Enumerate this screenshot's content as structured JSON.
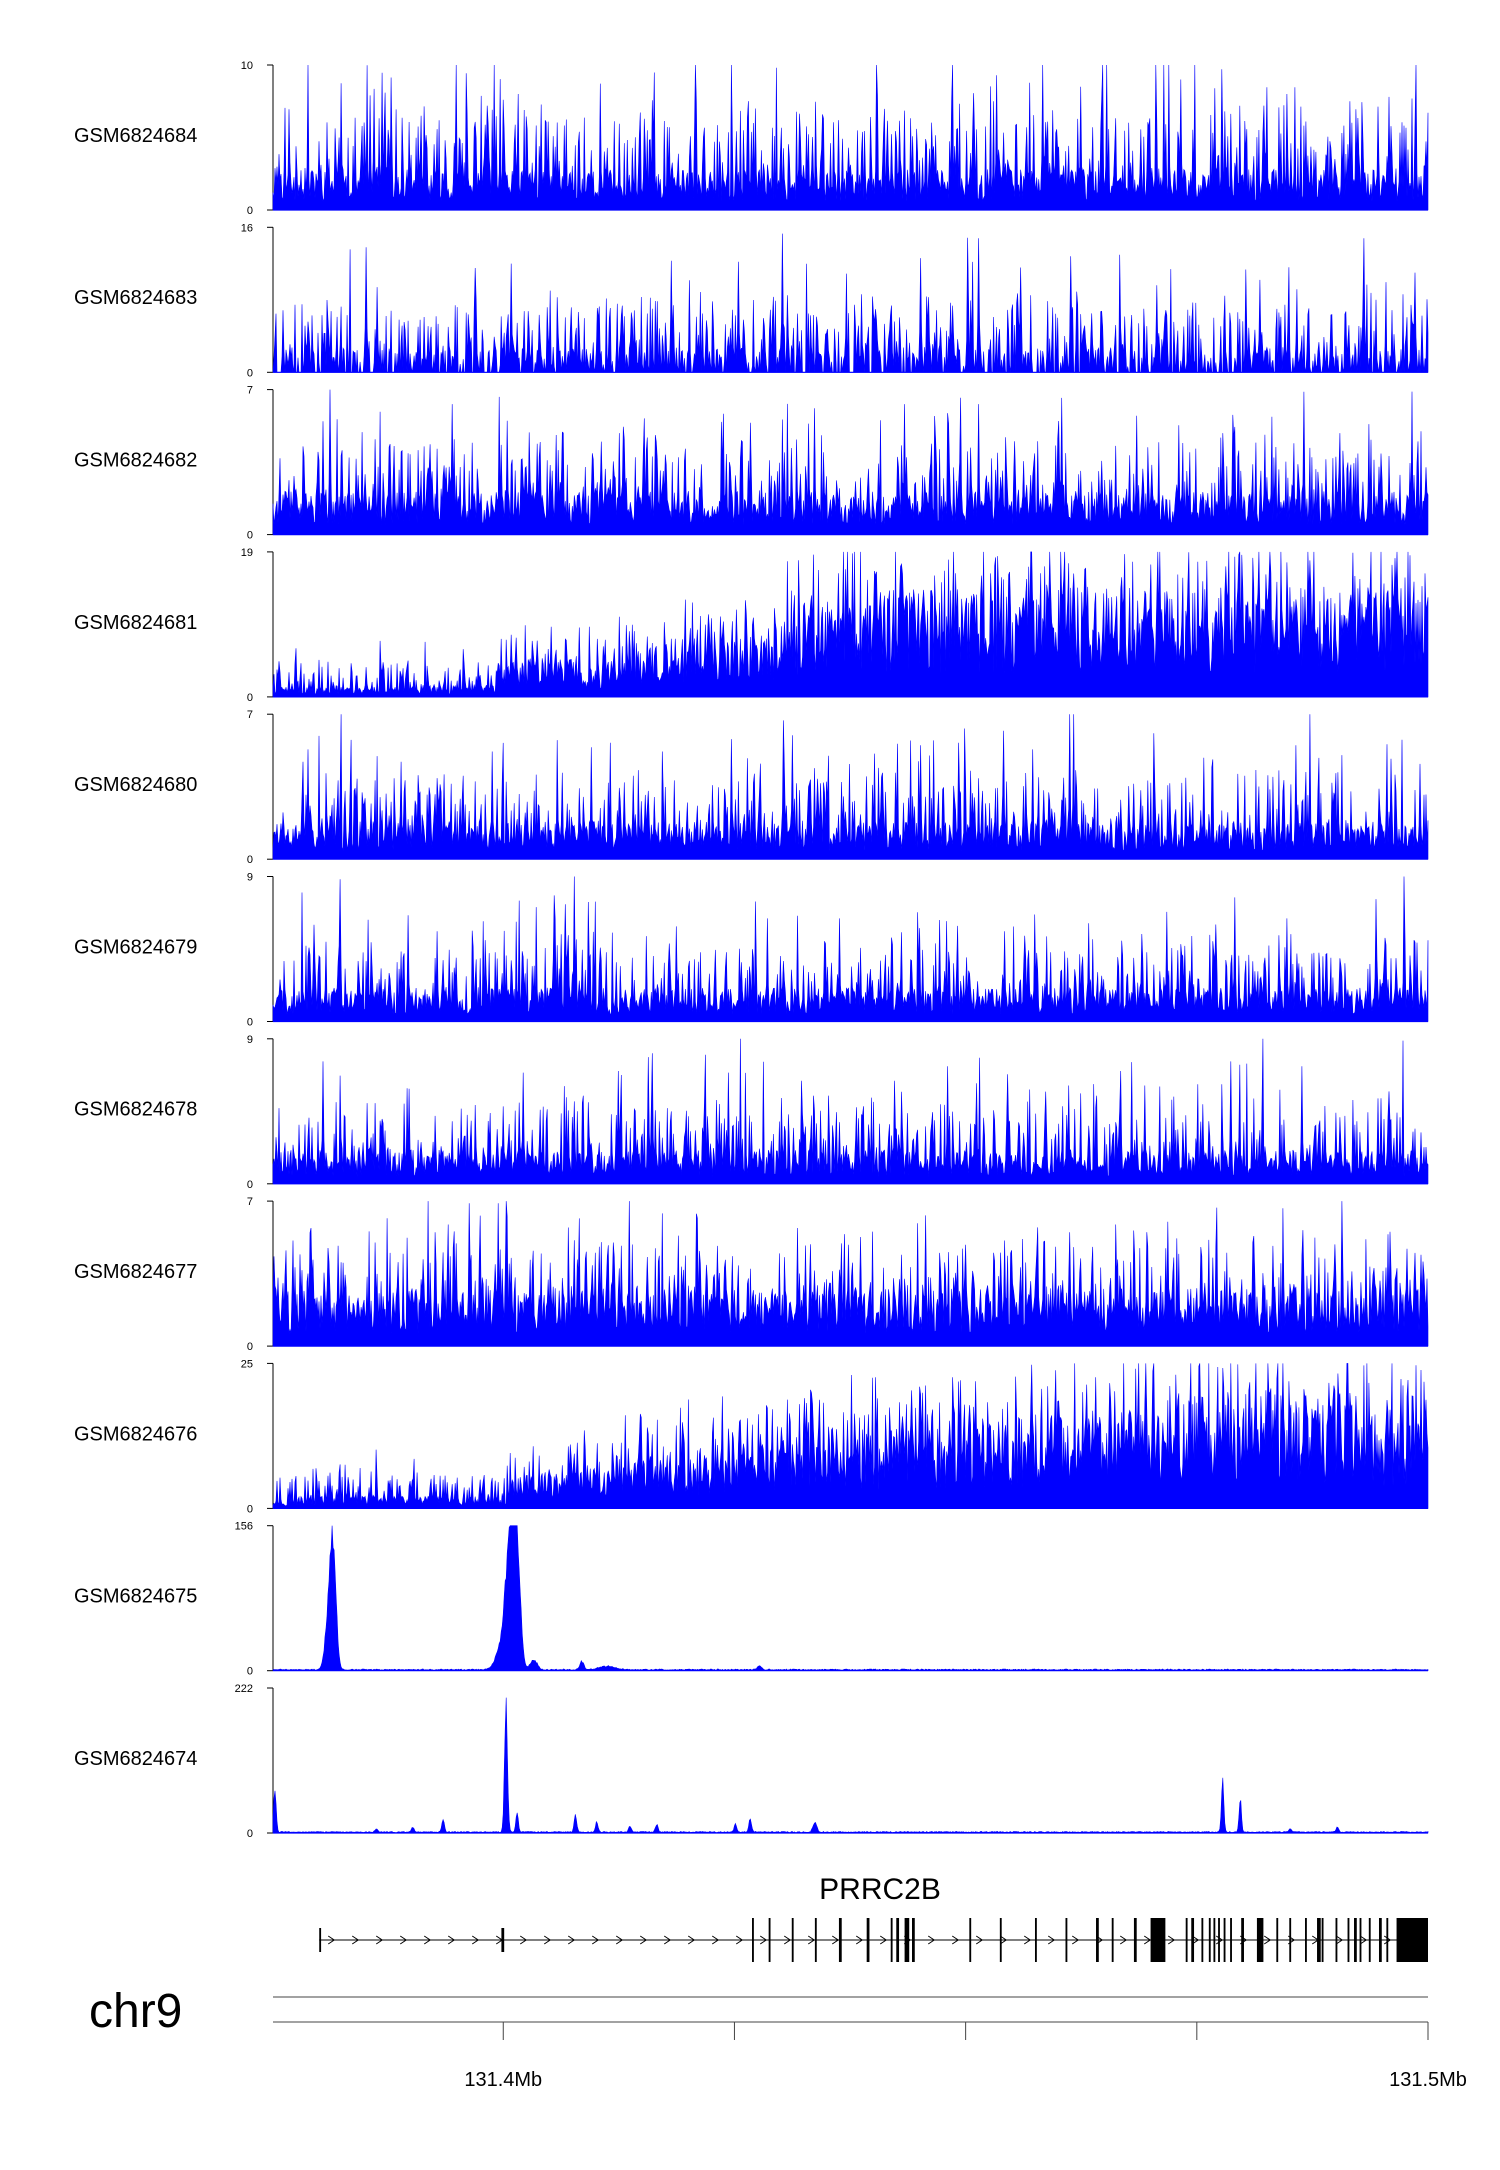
{
  "chart_data": {
    "type": "area",
    "title": "",
    "chromosome": "chr9",
    "gene": "PRRC2B",
    "x_unit": "Mb",
    "xlim": [
      131.3751,
      131.5
    ],
    "x_ticks": [
      131.4,
      131.5
    ],
    "x_tick_labels": [
      "131.4Mb",
      "131.5Mb"
    ],
    "grid": false,
    "series_color": "#0000FF",
    "tracks": [
      {
        "name": "GSM6824684",
        "ymax": 10,
        "ymin": 0,
        "profile": "noisy",
        "baseline": 2,
        "amp": 5,
        "seed": 11,
        "peaks": [
          [
            131.3856,
            7.9
          ],
          [
            131.3872,
            8.1
          ],
          [
            131.3911,
            6.5
          ],
          [
            131.4,
            7.6
          ],
          [
            131.4153,
            6.3
          ],
          [
            131.4271,
            6.0
          ],
          [
            131.4362,
            6.2
          ],
          [
            131.4533,
            9.3
          ],
          [
            131.4583,
            10.0
          ],
          [
            131.4624,
            8.5
          ],
          [
            131.4733,
            9.0
          ],
          [
            131.4769,
            8.4
          ],
          [
            131.4847,
            8.0
          ],
          [
            131.4916,
            7.5
          ],
          [
            131.4958,
            7.8
          ],
          [
            131.4986,
            6.0
          ]
        ]
      },
      {
        "name": "GSM6824683",
        "ymax": 16,
        "ymin": 0,
        "profile": "spiky",
        "baseline": 2,
        "amp": 6,
        "seed": 23,
        "peaks": [
          [
            131.3852,
            13.8
          ],
          [
            131.4009,
            12.0
          ],
          [
            131.4182,
            12.3
          ],
          [
            131.4254,
            12.2
          ],
          [
            131.4302,
            15.3
          ],
          [
            131.4451,
            12.6
          ],
          [
            131.4514,
            14.8
          ],
          [
            131.4614,
            12.8
          ],
          [
            131.4707,
            9.6
          ],
          [
            131.4818,
            10.2
          ],
          [
            131.4931,
            14.8
          ],
          [
            131.4986,
            11.0
          ]
        ]
      },
      {
        "name": "GSM6824682",
        "ymax": 7,
        "ymin": 0,
        "profile": "noisy",
        "baseline": 1.5,
        "amp": 3,
        "seed": 37,
        "peaks": [
          [
            131.3813,
            7.0
          ],
          [
            131.3861,
            4.6
          ],
          [
            131.3945,
            6.3
          ],
          [
            131.4004,
            5.5
          ],
          [
            131.4126,
            4.9
          ],
          [
            131.4267,
            5.4
          ],
          [
            131.4336,
            6.1
          ],
          [
            131.4434,
            6.3
          ],
          [
            131.4514,
            6.3
          ],
          [
            131.4604,
            6.6
          ],
          [
            131.4778,
            4.9
          ],
          [
            131.4866,
            6.9
          ],
          [
            131.4905,
            4.9
          ],
          [
            131.4989,
            4.5
          ]
        ]
      },
      {
        "name": "GSM6824681",
        "ymax": 19,
        "ymin": 0,
        "profile": "ramp",
        "ramp_pos": [
          131.3751,
          131.3996,
          131.4003,
          131.4128,
          131.4175,
          131.4278,
          131.4331,
          131.5
        ],
        "ramp_val": [
          1,
          1.2,
          3.5,
          3.5,
          5.5,
          5.5,
          10,
          10.5
        ],
        "amp": 3,
        "seed": 41,
        "peaks": [
          [
            131.3998,
            7.6
          ],
          [
            131.4136,
            8.6
          ],
          [
            131.4202,
            9.0
          ],
          [
            131.4264,
            6.6
          ],
          [
            131.4378,
            18.8
          ],
          [
            131.4402,
            16.5
          ],
          [
            131.4432,
            16.2
          ],
          [
            131.4489,
            16.2
          ],
          [
            131.4586,
            17.1
          ],
          [
            131.4681,
            17.7
          ],
          [
            131.4735,
            15.6
          ],
          [
            131.4781,
            17.1
          ]
        ]
      },
      {
        "name": "GSM6824680",
        "ymax": 7,
        "ymin": 0,
        "profile": "noisy",
        "baseline": 1.3,
        "amp": 3,
        "seed": 53,
        "peaks": [
          [
            131.3789,
            5.3
          ],
          [
            131.3889,
            4.7
          ],
          [
            131.3988,
            5.2
          ],
          [
            131.4095,
            5.4
          ],
          [
            131.4247,
            5.8
          ],
          [
            131.4303,
            6.7
          ],
          [
            131.4336,
            4.4
          ],
          [
            131.4402,
            5.1
          ],
          [
            131.4451,
            5.5
          ],
          [
            131.4541,
            6.2
          ],
          [
            131.4572,
            5.3
          ],
          [
            131.4612,
            7.0
          ],
          [
            131.4758,
            4.9
          ],
          [
            131.4857,
            5.5
          ],
          [
            131.4991,
            4.6
          ]
        ]
      },
      {
        "name": "GSM6824679",
        "ymax": 9,
        "ymin": 0,
        "profile": "noisy",
        "baseline": 1.5,
        "amp": 3.5,
        "seed": 67,
        "peaks": [
          [
            131.3795,
            6.0
          ],
          [
            131.3822,
            4.7
          ],
          [
            131.3897,
            6.6
          ],
          [
            131.3928,
            5.6
          ],
          [
            131.4077,
            9.0
          ],
          [
            131.4187,
            5.9
          ],
          [
            131.4286,
            6.4
          ],
          [
            131.4364,
            6.4
          ],
          [
            131.4472,
            6.3
          ],
          [
            131.4542,
            5.6
          ],
          [
            131.4633,
            6.1
          ],
          [
            131.4717,
            6.8
          ],
          [
            131.4791,
            7.7
          ],
          [
            131.4847,
            6.4
          ],
          [
            131.4944,
            7.6
          ],
          [
            131.4988,
            4.9
          ]
        ]
      },
      {
        "name": "GSM6824678",
        "ymax": 9,
        "ymin": 0,
        "profile": "noisy",
        "baseline": 1.5,
        "amp": 3.5,
        "seed": 79,
        "peaks": [
          [
            131.3805,
            7.6
          ],
          [
            131.3898,
            5.9
          ],
          [
            131.4022,
            6.9
          ],
          [
            131.4124,
            7.0
          ],
          [
            131.4161,
            8.1
          ],
          [
            131.4243,
            6.9
          ],
          [
            131.4323,
            6.4
          ],
          [
            131.4423,
            6.4
          ],
          [
            131.4481,
            7.3
          ],
          [
            131.4545,
            6.8
          ],
          [
            131.4611,
            6.1
          ],
          [
            131.4668,
            7.0
          ],
          [
            131.4694,
            6.1
          ],
          [
            131.4787,
            7.6
          ],
          [
            131.4864,
            7.3
          ],
          [
            131.4946,
            5.3
          ]
        ]
      },
      {
        "name": "GSM6824677",
        "ymax": 7,
        "ymin": 0,
        "profile": "noisy",
        "baseline": 2,
        "amp": 3,
        "seed": 83,
        "peaks": [
          [
            131.3773,
            5.1
          ],
          [
            131.3792,
            5.7
          ],
          [
            131.3861,
            5.0
          ],
          [
            131.3926,
            5.5
          ],
          [
            131.3963,
            6.9
          ],
          [
            131.3975,
            6.3
          ],
          [
            131.3994,
            6.9
          ],
          [
            131.4119,
            5.0
          ],
          [
            131.4318,
            5.7
          ],
          [
            131.4472,
            4.5
          ],
          [
            131.4542,
            5.1
          ],
          [
            131.4612,
            5.5
          ],
          [
            131.4719,
            6.0
          ],
          [
            131.4811,
            5.0
          ],
          [
            131.4865,
            5.6
          ],
          [
            131.4957,
            5.4
          ]
        ]
      },
      {
        "name": "GSM6824676",
        "ymax": 25,
        "ymin": 0,
        "profile": "ramp",
        "ramp_pos": [
          131.3751,
          131.4001,
          131.4011,
          131.4101,
          131.4181,
          131.4321,
          131.4501,
          131.4671,
          131.4801,
          131.5
        ],
        "ramp_val": [
          1.5,
          1.5,
          4,
          5,
          7,
          9,
          11,
          12,
          15,
          12
        ],
        "amp": 4,
        "seed": 97,
        "peaks": [
          [
            131.4148,
            16.3
          ],
          [
            131.4291,
            17.1
          ],
          [
            131.4377,
            23.0
          ],
          [
            131.4418,
            17.4
          ],
          [
            131.4483,
            15.1
          ],
          [
            131.4524,
            18.3
          ],
          [
            131.4582,
            20.6
          ],
          [
            131.4656,
            21.6
          ],
          [
            131.4752,
            24.5
          ],
          [
            131.4778,
            24.2
          ],
          [
            131.4867,
            19.1
          ],
          [
            131.4983,
            19.4
          ]
        ]
      },
      {
        "name": "GSM6824675",
        "ymax": 156,
        "ymin": 0,
        "profile": "sparse",
        "baseline": 1.5,
        "amp": 1.5,
        "seed": 101,
        "peaks": [
          [
            131.3816,
            135,
            0.00045
          ],
          [
            131.3811,
            60,
            0.0005
          ],
          [
            131.4009,
            155,
            0.0007
          ],
          [
            131.4016,
            82,
            0.00045
          ],
          [
            131.4003,
            40,
            0.0011
          ],
          [
            131.4033,
            12,
            0.0005
          ],
          [
            131.4085,
            10,
            0.0003
          ],
          [
            131.4112,
            4,
            0.0012
          ],
          [
            131.4277,
            5,
            0.0003
          ]
        ]
      },
      {
        "name": "GSM6824674",
        "ymax": 222,
        "ymin": 0,
        "profile": "sparse",
        "baseline": 2,
        "amp": 2,
        "seed": 103,
        "peaks": [
          [
            131.3753,
            65,
            0.0002
          ],
          [
            131.4003,
            222,
            0.00022
          ],
          [
            131.4015,
            35,
            0.00018
          ],
          [
            131.3863,
            6,
            0.0002
          ],
          [
            131.3902,
            8,
            0.0002
          ],
          [
            131.3935,
            20,
            0.0002
          ],
          [
            131.4078,
            28,
            0.0002
          ],
          [
            131.4101,
            16,
            0.0002
          ],
          [
            131.4137,
            10,
            0.0002
          ],
          [
            131.4166,
            13,
            0.0002
          ],
          [
            131.4251,
            14,
            0.00018
          ],
          [
            131.4267,
            22,
            0.0002
          ],
          [
            131.4337,
            16,
            0.0003
          ],
          [
            131.4778,
            85,
            0.00018
          ],
          [
            131.4797,
            55,
            0.00018
          ],
          [
            131.4851,
            6,
            0.0002
          ],
          [
            131.4902,
            8,
            0.0002
          ]
        ]
      }
    ],
    "gene_model": {
      "strand": "+",
      "intron_span": [
        131.3801,
        131.4995
      ],
      "exons": [
        [
          131.3801,
          131.3803
        ],
        [
          131.3998,
          131.4001
        ],
        [
          131.4269,
          131.4271
        ],
        [
          131.4287,
          131.4289
        ],
        [
          131.4312,
          131.4314
        ],
        [
          131.4337,
          131.4339
        ],
        [
          131.4363,
          131.4366
        ],
        [
          131.4393,
          131.4396
        ],
        [
          131.4419,
          131.4421
        ],
        [
          131.4425,
          131.4428
        ],
        [
          131.4434,
          131.4439
        ],
        [
          131.4442,
          131.4445
        ],
        [
          131.4504,
          131.4506
        ],
        [
          131.4537,
          131.4539
        ],
        [
          131.4575,
          131.4577
        ],
        [
          131.4608,
          131.461
        ],
        [
          131.4641,
          131.4644
        ],
        [
          131.4658,
          131.466
        ],
        [
          131.4682,
          131.4685
        ],
        [
          131.47,
          131.4716
        ],
        [
          131.4738,
          131.474
        ],
        [
          131.4744,
          131.4747
        ],
        [
          131.4755,
          131.4757
        ],
        [
          131.4763,
          131.4765
        ],
        [
          131.4768,
          131.477
        ],
        [
          131.4773,
          131.4775
        ],
        [
          131.4779,
          131.4781
        ],
        [
          131.4786,
          131.4788
        ],
        [
          131.4798,
          131.4801
        ],
        [
          131.4815,
          131.4822
        ],
        [
          131.4836,
          131.4838
        ],
        [
          131.485,
          131.4852
        ],
        [
          131.4867,
          131.4869
        ],
        [
          131.488,
          131.4884
        ],
        [
          131.4885,
          131.4887
        ],
        [
          131.49,
          131.4902
        ],
        [
          131.4913,
          131.4915
        ],
        [
          131.492,
          131.4923
        ],
        [
          131.4926,
          131.4928
        ],
        [
          131.4936,
          131.4938
        ],
        [
          131.4947,
          131.495
        ],
        [
          131.4955,
          131.4957
        ],
        [
          131.4966,
          131.5
        ]
      ]
    }
  }
}
